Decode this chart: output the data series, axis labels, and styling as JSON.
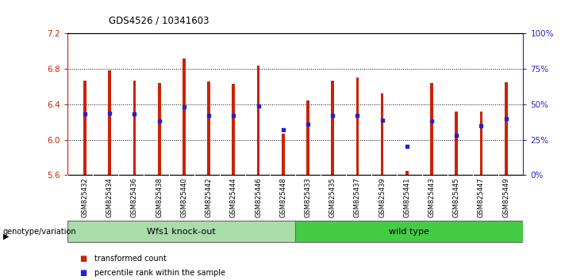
{
  "title": "GDS4526 / 10341603",
  "samples": [
    "GSM825432",
    "GSM825434",
    "GSM825436",
    "GSM825438",
    "GSM825440",
    "GSM825442",
    "GSM825444",
    "GSM825446",
    "GSM825448",
    "GSM825433",
    "GSM825435",
    "GSM825437",
    "GSM825439",
    "GSM825441",
    "GSM825443",
    "GSM825445",
    "GSM825447",
    "GSM825449"
  ],
  "red_values": [
    6.67,
    6.78,
    6.67,
    6.64,
    6.92,
    6.66,
    6.63,
    6.84,
    6.07,
    6.44,
    6.67,
    6.7,
    6.52,
    5.65,
    6.64,
    6.32,
    6.32,
    6.65
  ],
  "blue_percentiles": [
    43,
    44,
    43,
    38,
    48,
    42,
    42,
    49,
    32,
    36,
    42,
    42,
    39,
    20,
    38,
    28,
    35,
    40
  ],
  "groups": [
    {
      "label": "Wfs1 knock-out",
      "start": 0,
      "end": 9,
      "color": "#AADDAA"
    },
    {
      "label": "wild type",
      "start": 9,
      "end": 18,
      "color": "#44CC44"
    }
  ],
  "ylim_left": [
    5.6,
    7.2
  ],
  "ylim_right": [
    0,
    100
  ],
  "yticks_left": [
    5.6,
    6.0,
    6.4,
    6.8,
    7.2
  ],
  "yticks_right": [
    0,
    25,
    50,
    75,
    100
  ],
  "ytick_labels_right": [
    "0%",
    "25%",
    "50%",
    "75%",
    "100%"
  ],
  "bar_color": "#CC2200",
  "dot_color": "#2222CC",
  "bar_width": 0.12,
  "baseline": 5.6,
  "background_color": "#ffffff",
  "legend_items": [
    "transformed count",
    "percentile rank within the sample"
  ],
  "legend_colors": [
    "#CC2200",
    "#2222CC"
  ],
  "ylabel_left_color": "#CC2200",
  "ylabel_right_color": "#2222CC",
  "grid_yticks": [
    6.0,
    6.4,
    6.8
  ],
  "xlim": [
    -0.7,
    17.7
  ]
}
